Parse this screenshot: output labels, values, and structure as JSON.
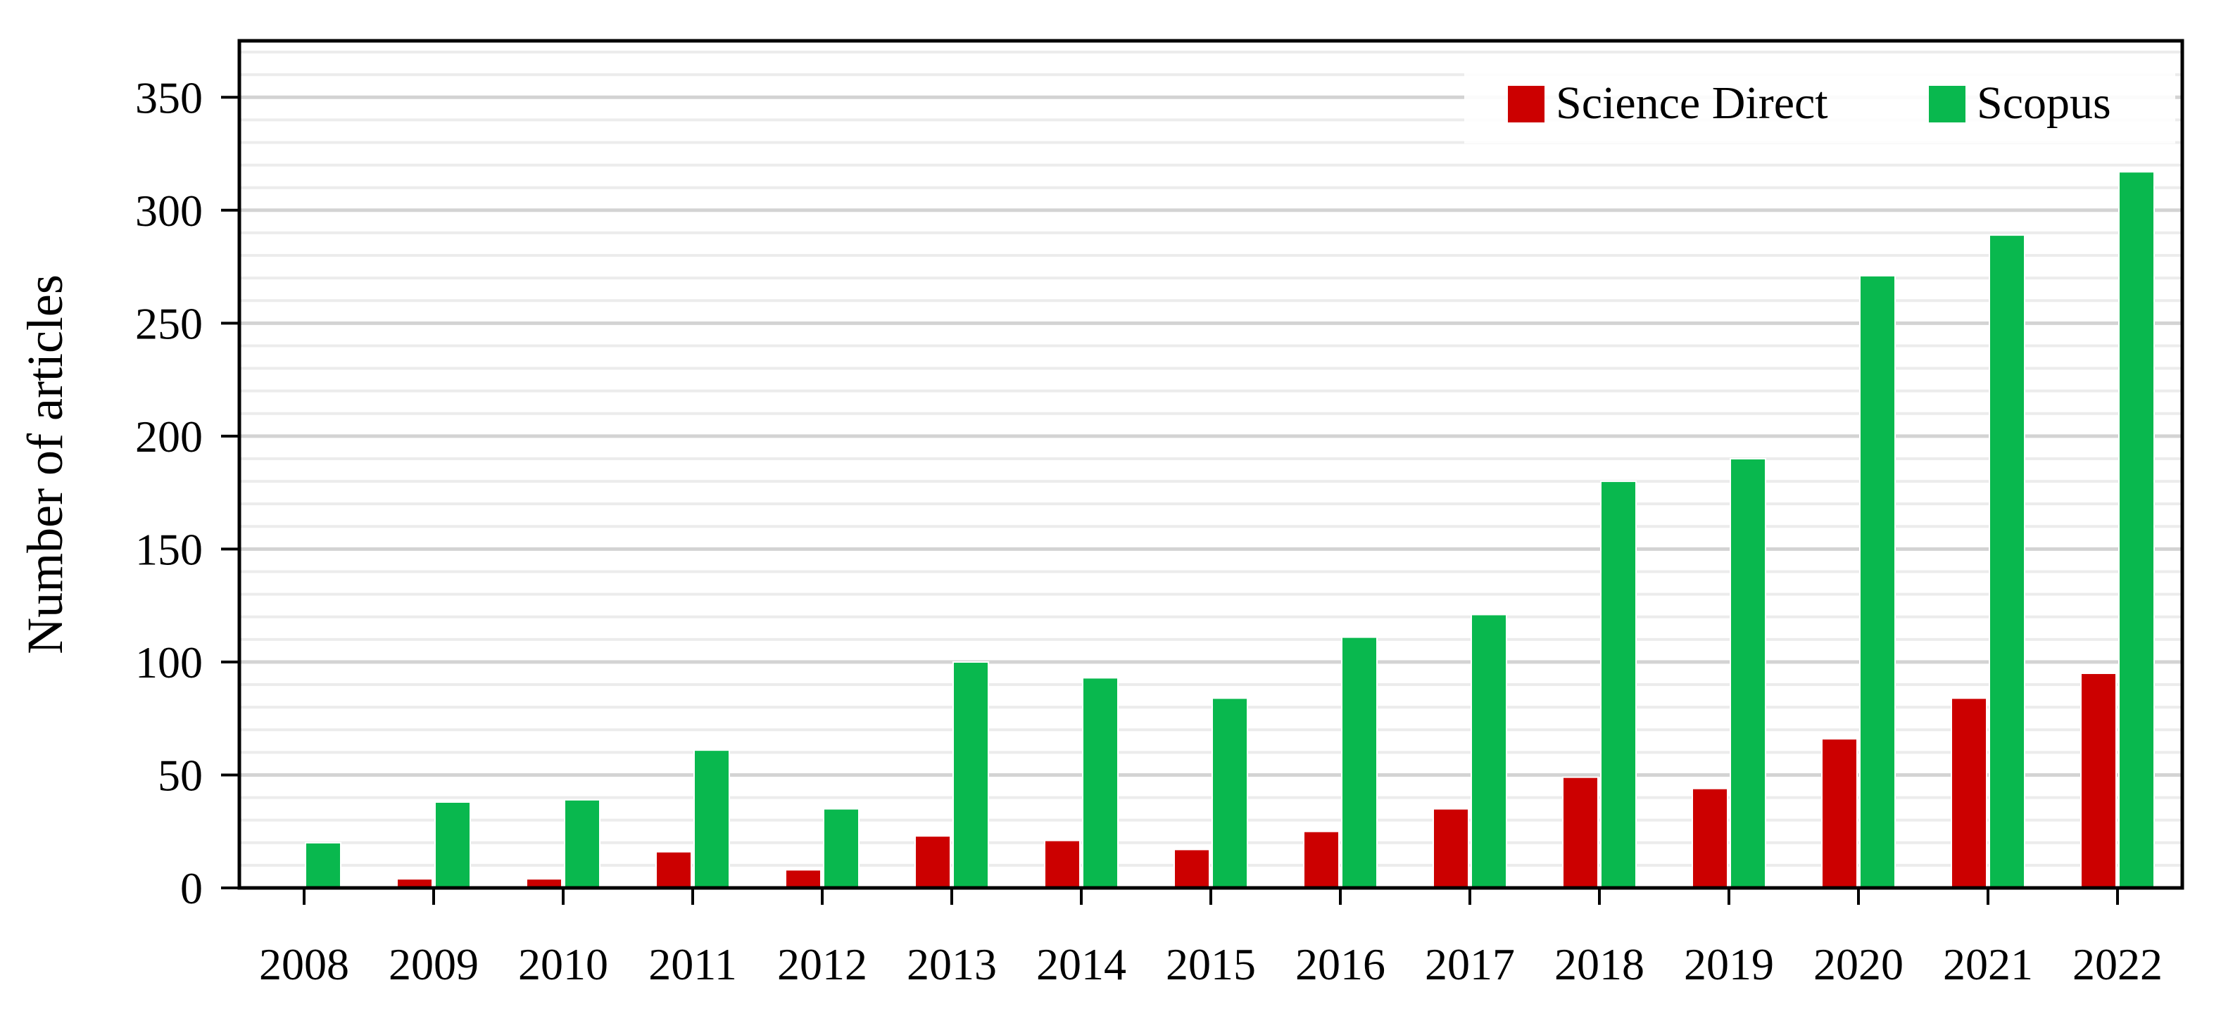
{
  "chart_data": {
    "type": "bar",
    "categories": [
      "2008",
      "2009",
      "2010",
      "2011",
      "2012",
      "2013",
      "2014",
      "2015",
      "2016",
      "2017",
      "2018",
      "2019",
      "2020",
      "2021",
      "2022"
    ],
    "series": [
      {
        "name": "Science Direct",
        "color": "#cc0000",
        "values": [
          0,
          4,
          4,
          16,
          8,
          23,
          21,
          17,
          25,
          35,
          49,
          44,
          66,
          84,
          95
        ]
      },
      {
        "name": "Scopus",
        "color": "#09b84e",
        "values": [
          20,
          38,
          39,
          61,
          35,
          100,
          93,
          84,
          111,
          121,
          180,
          190,
          271,
          289,
          317
        ]
      }
    ],
    "title": "",
    "xlabel": "",
    "ylabel": "Number of articles",
    "ylim": [
      0,
      350
    ],
    "yticks": [
      0,
      50,
      100,
      150,
      200,
      250,
      300,
      350
    ],
    "grid": true,
    "legend_position": "top-right"
  }
}
